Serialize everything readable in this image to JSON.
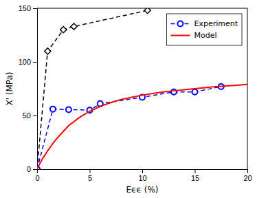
{
  "chart_data": {
    "type": "line",
    "xlabel": "Eϵϵ (%)",
    "ylabel": "X' (MPa)",
    "xlim": [
      0,
      20
    ],
    "ylim": [
      0,
      150
    ],
    "xticks": [
      0,
      5,
      10,
      15,
      20
    ],
    "yticks": [
      0,
      50,
      100,
      150
    ],
    "legend": "upper right",
    "series": [
      {
        "color": "#000000",
        "marker": "diamond",
        "line_style": "dashed",
        "x": [
          0.0,
          1.0,
          2.5,
          3.5,
          10.5
        ],
        "values": [
          0.0,
          110.0,
          130.0,
          133.0,
          148.0
        ]
      },
      {
        "name": "Experiment",
        "color": "#0000FF",
        "marker": "circle",
        "line_style": "dashed",
        "x": [
          0.0,
          1.5,
          3.0,
          5.0,
          6.0,
          10.0,
          13.0,
          15.0,
          17.5
        ],
        "values": [
          0.0,
          56.0,
          55.5,
          55.0,
          61.0,
          67.0,
          72.0,
          72.0,
          77.0
        ]
      },
      {
        "name": "Model",
        "color": "#FF0000",
        "marker": "none",
        "line_style": "solid",
        "x": [
          0.0,
          0.3,
          0.6,
          1.0,
          1.5,
          2.0,
          3.0,
          4.0,
          5.0,
          6.0,
          7.0,
          8.0,
          9.0,
          10.0,
          11.0,
          12.0,
          13.0,
          14.0,
          15.0,
          16.0,
          17.0,
          18.0,
          19.0,
          20.0
        ],
        "values": [
          0.0,
          6.0,
          11.0,
          17.0,
          24.0,
          30.0,
          40.5,
          48.0,
          54.0,
          58.5,
          62.0,
          65.0,
          67.0,
          69.0,
          70.5,
          72.0,
          73.0,
          74.0,
          75.0,
          76.0,
          77.0,
          77.5,
          78.2,
          79.0
        ]
      }
    ]
  }
}
